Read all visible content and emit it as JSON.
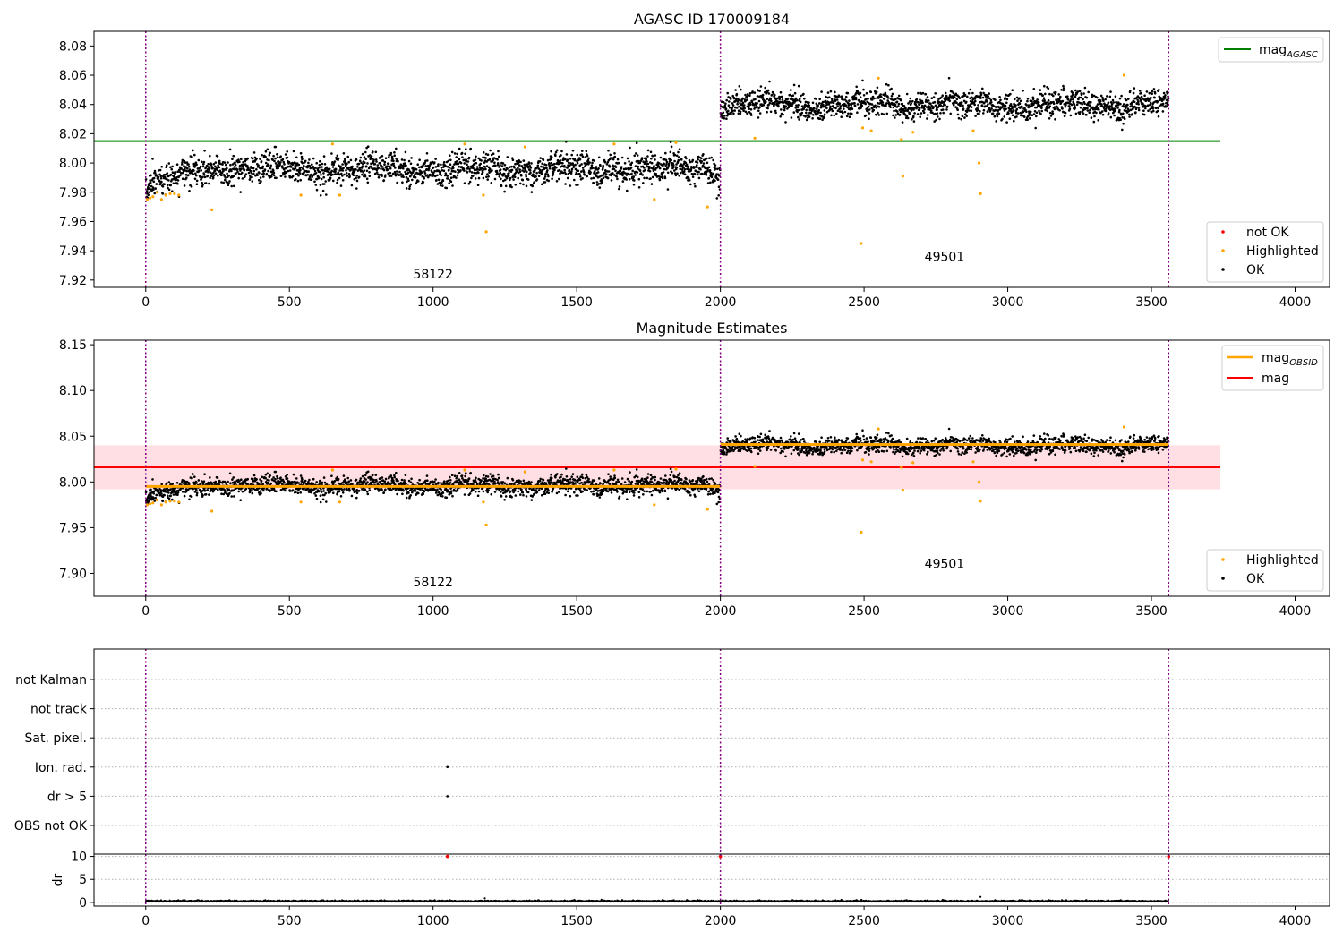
{
  "figure": {
    "panel1_title": "AGASC ID 170009184",
    "panel2_title": "Magnitude Estimates"
  },
  "colors": {
    "ok": "#000000",
    "highlighted": "#ffa500",
    "not_ok": "#ff0000",
    "mag_agasc": "#008000",
    "mag_obsid": "#ffa500",
    "mag": "#ff0000",
    "band": "#ffc0c8",
    "obsid_line": "#800080",
    "grid": "#b0b0b0"
  },
  "chart_data": [
    {
      "type": "scatter",
      "title": "AGASC ID 170009184",
      "xlim": [
        -180,
        4120
      ],
      "ylim": [
        7.915,
        8.09
      ],
      "xticks": [
        0,
        500,
        1000,
        1500,
        2000,
        2500,
        3000,
        3500,
        4000
      ],
      "yticks": [
        7.92,
        7.94,
        7.96,
        7.98,
        8.0,
        8.02,
        8.04,
        8.06,
        8.08
      ],
      "obsid_boundaries": [
        0,
        2000,
        3560
      ],
      "obsid_labels": [
        {
          "text": "58122",
          "x": 1000,
          "y": 7.921
        },
        {
          "text": "49501",
          "x": 2780,
          "y": 7.933
        }
      ],
      "mag_agasc": {
        "value": 8.015,
        "x": [
          -180,
          3740
        ]
      },
      "segments": [
        {
          "x": [
            0,
            2000
          ],
          "ok_center": 7.996,
          "ok_spread": 0.007,
          "start_center": 7.983
        },
        {
          "x": [
            2000,
            3560
          ],
          "ok_center": 8.04,
          "ok_spread": 0.006
        }
      ],
      "highlighted_points": [
        [
          5,
          7.975
        ],
        [
          15,
          7.976
        ],
        [
          25,
          7.977
        ],
        [
          40,
          7.98
        ],
        [
          55,
          7.975
        ],
        [
          70,
          7.978
        ],
        [
          85,
          7.979
        ],
        [
          100,
          7.979
        ],
        [
          115,
          7.978
        ],
        [
          230,
          7.968
        ],
        [
          540,
          7.978
        ],
        [
          650,
          8.013
        ],
        [
          675,
          7.978
        ],
        [
          1110,
          8.013
        ],
        [
          1175,
          7.978
        ],
        [
          1185,
          7.953
        ],
        [
          1320,
          8.011
        ],
        [
          1630,
          8.013
        ],
        [
          1770,
          7.975
        ],
        [
          1845,
          8.014
        ],
        [
          1955,
          7.97
        ],
        [
          2120,
          8.017
        ],
        [
          2490,
          7.945
        ],
        [
          2495,
          8.024
        ],
        [
          2525,
          8.022
        ],
        [
          2550,
          8.058
        ],
        [
          2630,
          8.016
        ],
        [
          2635,
          7.991
        ],
        [
          2670,
          8.021
        ],
        [
          2880,
          8.022
        ],
        [
          2900,
          8.0
        ],
        [
          2905,
          7.979
        ],
        [
          3405,
          8.06
        ]
      ],
      "legend_top": {
        "entries": [
          "mag_AGASC"
        ],
        "position": "upper right"
      },
      "legend_bottom": {
        "entries": [
          "not OK",
          "Highlighted",
          "OK"
        ],
        "position": "lower right"
      },
      "legend_labels": {
        "mag_agasc_main": "mag",
        "mag_agasc_sub": "AGASC",
        "not_ok": "not OK",
        "highlighted": "Highlighted",
        "ok": "OK"
      }
    },
    {
      "type": "scatter",
      "title": "Magnitude Estimates",
      "xlim": [
        -180,
        4120
      ],
      "ylim": [
        7.875,
        8.155
      ],
      "xticks": [
        0,
        500,
        1000,
        1500,
        2000,
        2500,
        3000,
        3500,
        4000
      ],
      "yticks": [
        7.9,
        7.95,
        8.0,
        8.05,
        8.1,
        8.15
      ],
      "obsid_boundaries": [
        0,
        2000,
        3560
      ],
      "obsid_labels": [
        {
          "text": "58122",
          "x": 1000,
          "y": 7.886
        },
        {
          "text": "49501",
          "x": 2780,
          "y": 7.906
        }
      ],
      "mag": {
        "value": 8.016,
        "band": [
          7.992,
          8.04
        ],
        "x": [
          -180,
          3740
        ]
      },
      "mag_obsid": [
        {
          "x": [
            0,
            2000
          ],
          "value": 7.995
        },
        {
          "x": [
            2000,
            3560
          ],
          "value": 8.041
        }
      ],
      "legend_top": {
        "entries": [
          "mag_OBSID",
          "mag"
        ],
        "position": "upper right"
      },
      "legend_bottom": {
        "entries": [
          "Highlighted",
          "OK"
        ],
        "position": "lower right"
      },
      "legend_labels": {
        "mag_obsid_main": "mag",
        "mag_obsid_sub": "OBSID",
        "mag": "mag",
        "highlighted": "Highlighted",
        "ok": "OK"
      }
    },
    {
      "type": "scatter",
      "title": "",
      "xlim": [
        -180,
        4120
      ],
      "xticks": [
        0,
        500,
        1000,
        1500,
        2000,
        2500,
        3000,
        3500,
        4000
      ],
      "flag_rows": [
        "not Kalman",
        "not track",
        "Sat. pixel.",
        "Ion. rad.",
        "dr > 5",
        "OBS not OK"
      ],
      "flag_points": [
        {
          "row": "Ion. rad.",
          "x": 1050
        },
        {
          "row": "dr > 5",
          "x": 1050
        }
      ],
      "dr": {
        "ylabel": "dr",
        "ylim": [
          -0.8,
          10.5
        ],
        "yticks": [
          0,
          5,
          10
        ],
        "typical": 0.2,
        "outliers": [
          [
            2905,
            1.2
          ],
          [
            1180,
            0.9
          ]
        ],
        "not_ok_points": [
          [
            1050,
            10
          ],
          [
            2000,
            10
          ],
          [
            3560,
            10
          ]
        ]
      }
    }
  ]
}
